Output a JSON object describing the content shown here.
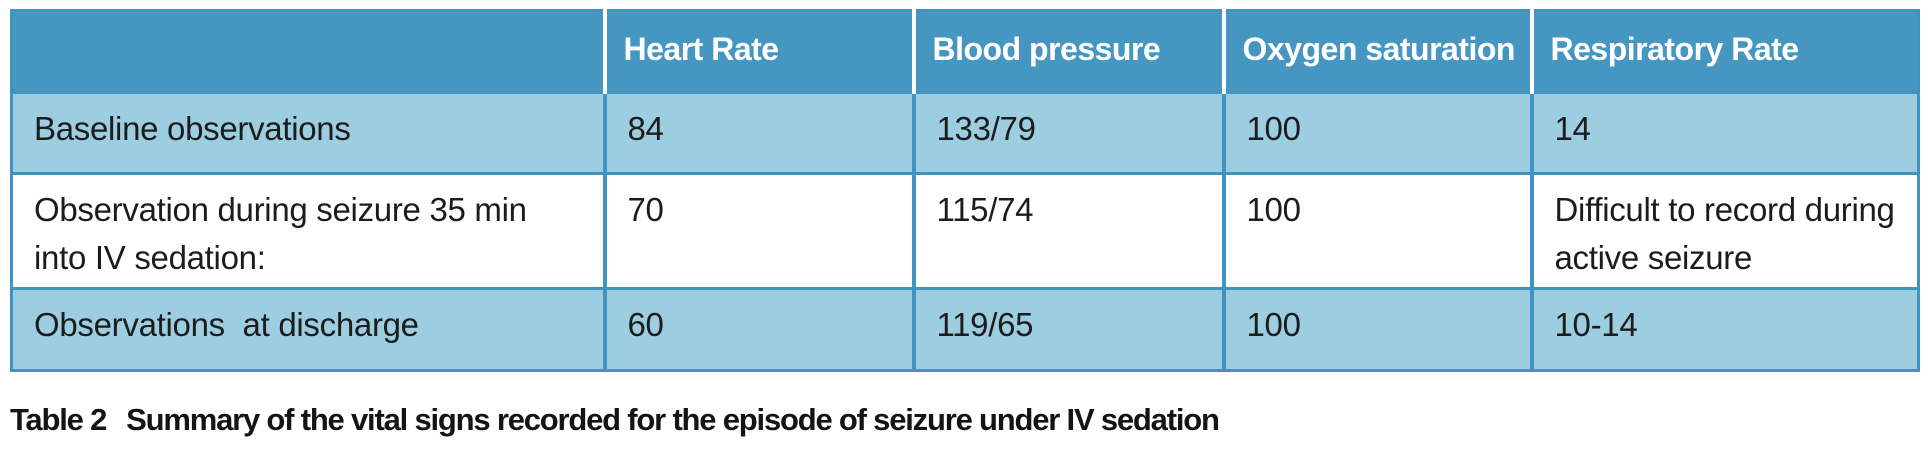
{
  "table": {
    "columns": {
      "label": "",
      "heart_rate": "Heart Rate",
      "blood_pressure": "Blood pressure",
      "oxygen_saturation": "Oxygen saturation",
      "respiratory_rate": "Respiratory Rate"
    },
    "rows": [
      {
        "label": "Baseline observations",
        "heart_rate": "84",
        "blood_pressure": "133/79",
        "oxygen_saturation": "100",
        "respiratory_rate": "14"
      },
      {
        "label": "Observation during seizure 35 min\ninto IV sedation:",
        "heart_rate": "70",
        "blood_pressure": "115/74",
        "oxygen_saturation": "100",
        "respiratory_rate": "Difficult to record during\nactive seizure"
      },
      {
        "label": "Observations  at discharge",
        "heart_rate": "60",
        "blood_pressure": "119/65",
        "oxygen_saturation": "100",
        "respiratory_rate": "10-14"
      }
    ]
  },
  "caption": {
    "label": "Table 2",
    "text": "Summary of the vital signs recorded for the episode of seizure under IV sedation"
  },
  "colors": {
    "header_bg": "#4597c2",
    "shaded_row_bg": "#9ccde0",
    "plain_row_bg": "#ffffff",
    "grid_border": "#3f94c0",
    "header_text": "#ffffff",
    "body_text": "#1c1c1c"
  }
}
